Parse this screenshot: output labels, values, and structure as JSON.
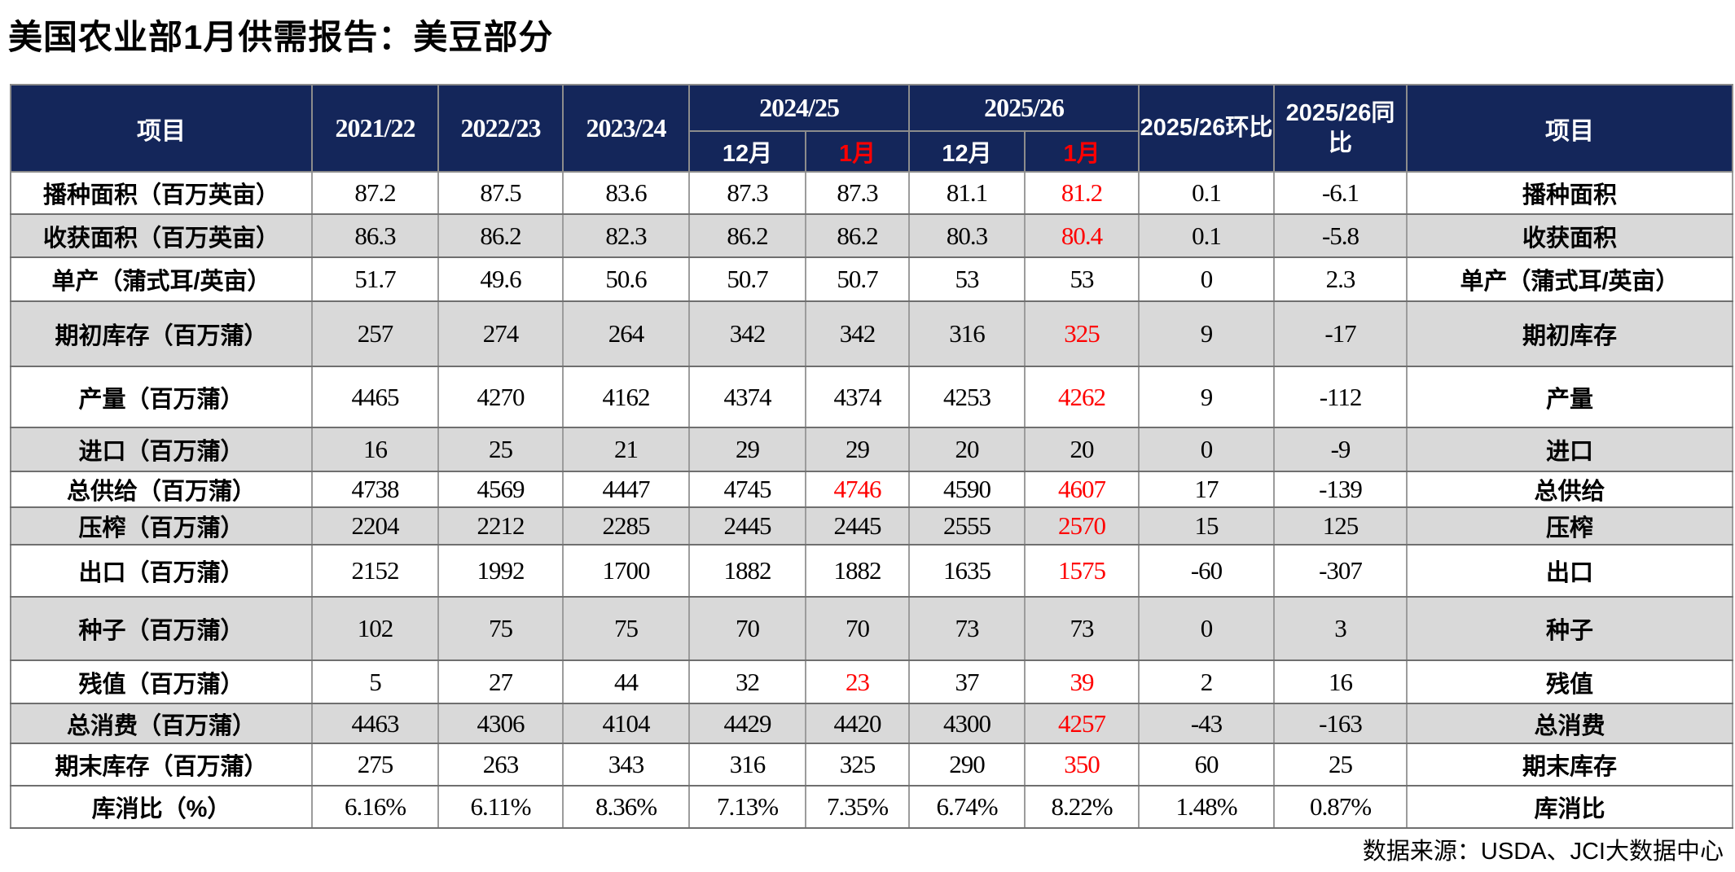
{
  "title": "美国农业部1月供需报告：美豆部分",
  "footer": {
    "source": "数据来源：USDA、JCI大数据中心"
  },
  "colors": {
    "header_bg": "#14265A",
    "row_shade": "#D9D9D9",
    "highlight_red": "#FF0000",
    "header_text": "#FFFFFF",
    "body_text": "#000000"
  },
  "table": {
    "header": {
      "item_left": "项目",
      "item_right": "项目",
      "years": [
        "2021/22",
        "2022/23",
        "2023/24"
      ],
      "groups": [
        {
          "label": "2024/25",
          "months": [
            {
              "label": "12月",
              "red": false
            },
            {
              "label": "1月",
              "red": true
            }
          ]
        },
        {
          "label": "2025/26",
          "months": [
            {
              "label": "12月",
              "red": false
            },
            {
              "label": "1月",
              "red": true
            }
          ]
        }
      ],
      "mom_label": "2025/26环比",
      "yoy_label": "2025/26同比"
    },
    "rows": [
      {
        "label": "播种面积（百万英亩）",
        "label_right": "播种面积",
        "values": [
          "87.2",
          "87.5",
          "83.6",
          "87.3",
          "87.3",
          "81.1",
          "81.2",
          "0.1",
          "-6.1"
        ],
        "red": [
          6
        ],
        "shade": false
      },
      {
        "label": "收获面积（百万英亩）",
        "label_right": "收获面积",
        "values": [
          "86.3",
          "86.2",
          "82.3",
          "86.2",
          "86.2",
          "80.3",
          "80.4",
          "0.1",
          "-5.8"
        ],
        "red": [
          6
        ],
        "shade": true
      },
      {
        "label": "单产（蒲式耳/英亩）",
        "label_right": "单产（蒲式耳/英亩）",
        "values": [
          "51.7",
          "49.6",
          "50.6",
          "50.7",
          "50.7",
          "53",
          "53",
          "0",
          "2.3"
        ],
        "red": [],
        "shade": false
      },
      {
        "label": "期初库存（百万蒲）",
        "label_right": "期初库存",
        "values": [
          "257",
          "274",
          "264",
          "342",
          "342",
          "316",
          "325",
          "9",
          "-17"
        ],
        "red": [
          6
        ],
        "shade": true
      },
      {
        "label": "产量（百万蒲）",
        "label_right": "产量",
        "values": [
          "4465",
          "4270",
          "4162",
          "4374",
          "4374",
          "4253",
          "4262",
          "9",
          "-112"
        ],
        "red": [
          6
        ],
        "shade": false
      },
      {
        "label": "进口（百万蒲）",
        "label_right": "进口",
        "values": [
          "16",
          "25",
          "21",
          "29",
          "29",
          "20",
          "20",
          "0",
          "-9"
        ],
        "red": [],
        "shade": true
      },
      {
        "label": "总供给（百万蒲）",
        "label_right": "总供给",
        "values": [
          "4738",
          "4569",
          "4447",
          "4745",
          "4746",
          "4590",
          "4607",
          "17",
          "-139"
        ],
        "red": [
          4,
          6
        ],
        "shade": false
      },
      {
        "label": "压榨（百万蒲）",
        "label_right": "压榨",
        "values": [
          "2204",
          "2212",
          "2285",
          "2445",
          "2445",
          "2555",
          "2570",
          "15",
          "125"
        ],
        "red": [
          6
        ],
        "shade": true
      },
      {
        "label": "出口（百万蒲）",
        "label_right": "出口",
        "values": [
          "2152",
          "1992",
          "1700",
          "1882",
          "1882",
          "1635",
          "1575",
          "-60",
          "-307"
        ],
        "red": [
          6
        ],
        "shade": false
      },
      {
        "label": "种子（百万蒲）",
        "label_right": "种子",
        "values": [
          "102",
          "75",
          "75",
          "70",
          "70",
          "73",
          "73",
          "0",
          "3"
        ],
        "red": [],
        "shade": true
      },
      {
        "label": "残值（百万蒲）",
        "label_right": "残值",
        "values": [
          "5",
          "27",
          "44",
          "32",
          "23",
          "37",
          "39",
          "2",
          "16"
        ],
        "red": [
          4,
          6
        ],
        "shade": false
      },
      {
        "label": "总消费（百万蒲）",
        "label_right": "总消费",
        "values": [
          "4463",
          "4306",
          "4104",
          "4429",
          "4420",
          "4300",
          "4257",
          "-43",
          "-163"
        ],
        "red": [
          6
        ],
        "shade": true
      },
      {
        "label": "期末库存（百万蒲）",
        "label_right": "期末库存",
        "values": [
          "275",
          "263",
          "343",
          "316",
          "325",
          "290",
          "350",
          "60",
          "25"
        ],
        "red": [
          6
        ],
        "shade": false
      },
      {
        "label": "库消比（%）",
        "label_right": "库消比",
        "values": [
          "6.16%",
          "6.11%",
          "8.36%",
          "7.13%",
          "7.35%",
          "6.74%",
          "8.22%",
          "1.48%",
          "0.87%"
        ],
        "red": [],
        "shade": false
      }
    ]
  }
}
